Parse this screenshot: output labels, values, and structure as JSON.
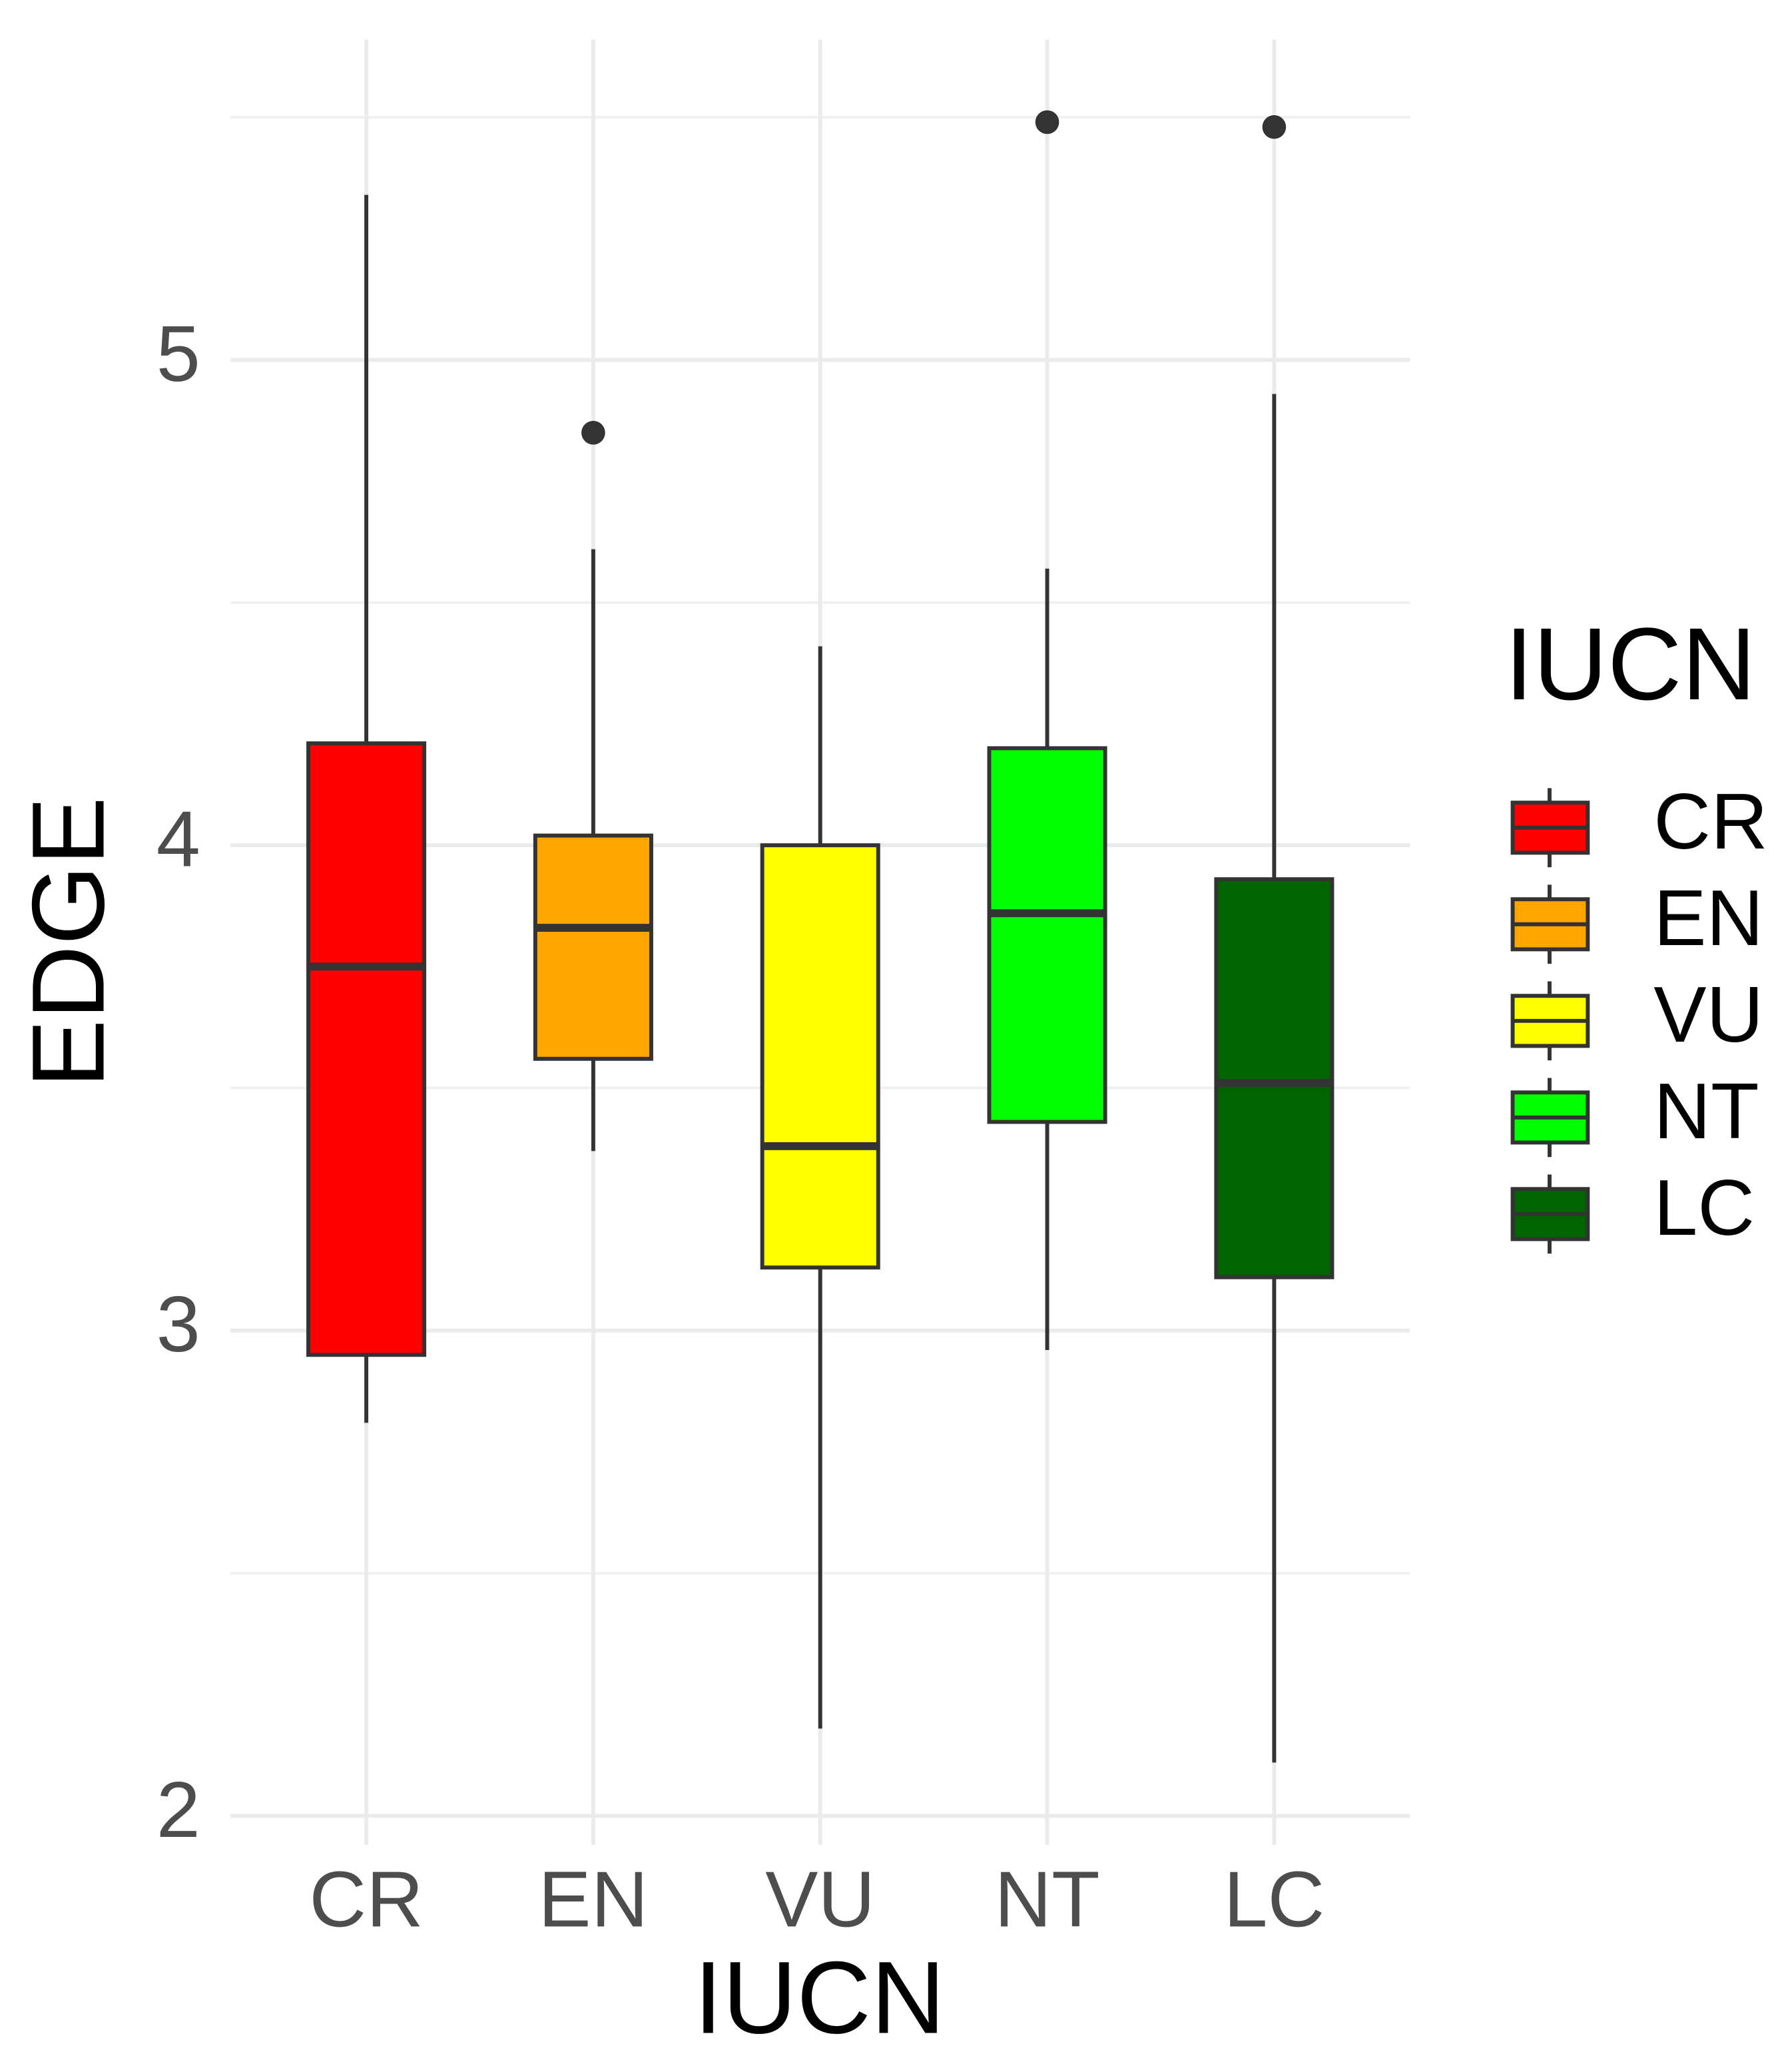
{
  "chart_data": {
    "type": "box",
    "x_label": "IUCN",
    "y_label": "EDGE",
    "legend_title": "IUCN",
    "categories": [
      "CR",
      "EN",
      "VU",
      "NT",
      "LC"
    ],
    "boxes": [
      {
        "color": "#ff0000",
        "whisker_low": 2.81,
        "q1": 2.95,
        "median": 3.75,
        "q3": 4.21,
        "whisker_high": 5.34,
        "outliers": []
      },
      {
        "color": "#ffa500",
        "whisker_low": 3.37,
        "q1": 3.56,
        "median": 3.83,
        "q3": 4.02,
        "whisker_high": 4.61,
        "outliers": [
          4.85
        ]
      },
      {
        "color": "#ffff00",
        "whisker_low": 2.18,
        "q1": 3.13,
        "median": 3.38,
        "q3": 4.0,
        "whisker_high": 4.41,
        "outliers": []
      },
      {
        "color": "#00ff00",
        "whisker_low": 2.96,
        "q1": 3.43,
        "median": 3.86,
        "q3": 4.2,
        "whisker_high": 4.57,
        "outliers": [
          5.49
        ]
      },
      {
        "color": "#006400",
        "whisker_low": 2.11,
        "q1": 3.11,
        "median": 3.51,
        "q3": 3.93,
        "whisker_high": 4.93,
        "outliers": [
          5.48
        ]
      }
    ],
    "ylim": [
      1.94,
      5.66
    ],
    "yticks": [
      2,
      3,
      4,
      5
    ],
    "grid": true,
    "legend": "right"
  }
}
